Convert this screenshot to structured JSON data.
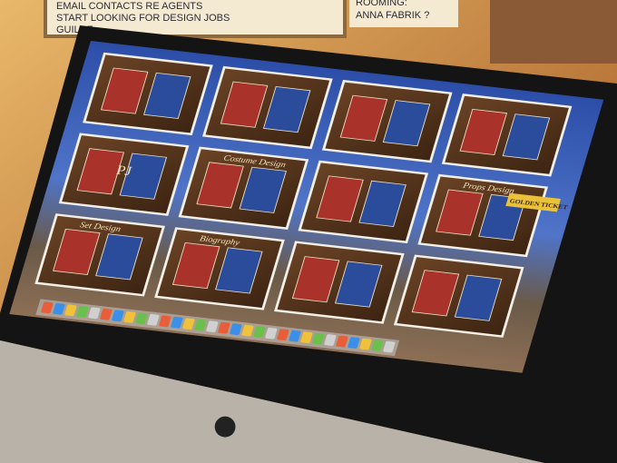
{
  "notes": {
    "lines": [
      "EMAIL CONTACTS RE AGENTS",
      "START LOOKING FOR DESIGN JOBS",
      "GUILDF"
    ],
    "side": [
      "ROOMING:",
      "ANNA FABRIK ?"
    ]
  },
  "screen": {
    "panels": [
      "Costume Design",
      "Set Design",
      "Biography",
      "Props Design"
    ],
    "ticket": "GOLDEN TICKET",
    "logo": "PJ"
  }
}
